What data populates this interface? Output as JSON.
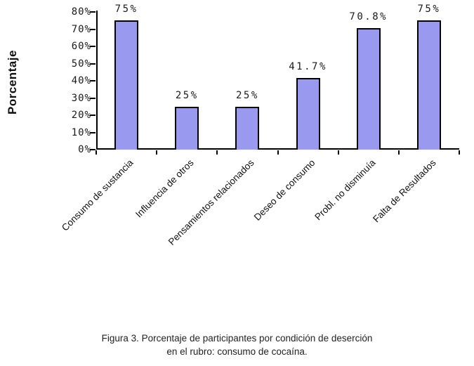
{
  "figure": {
    "caption_line1": "Figura 3. Porcentaje de participantes por condición de deserción",
    "caption_line2": "en el rubro: consumo de cocaína."
  },
  "chart_data": {
    "type": "bar",
    "title": "",
    "xlabel": "",
    "ylabel": "Porcentaje",
    "categories": [
      "Consumo de sustancia",
      "Influencia de otros",
      "Pensamientos relacionados",
      "Deseo de consumo",
      "Probl. no disminuía",
      "Falta de Resultados"
    ],
    "values": [
      75,
      25,
      25,
      41.7,
      70.8,
      75
    ],
    "bar_labels": [
      "75%",
      "25%",
      "25%",
      "41.7%",
      "70.8%",
      "75%"
    ],
    "ylim": [
      0,
      80
    ],
    "ytick_step": 10,
    "ytick_labels": [
      "0%",
      "10%",
      "20%",
      "30%",
      "40%",
      "50%",
      "60%",
      "70%",
      "80%"
    ],
    "grid": false,
    "legend": "none",
    "bar_color": "#9999F0",
    "bar_border_color": "#000000",
    "axis_color": "#000000"
  }
}
